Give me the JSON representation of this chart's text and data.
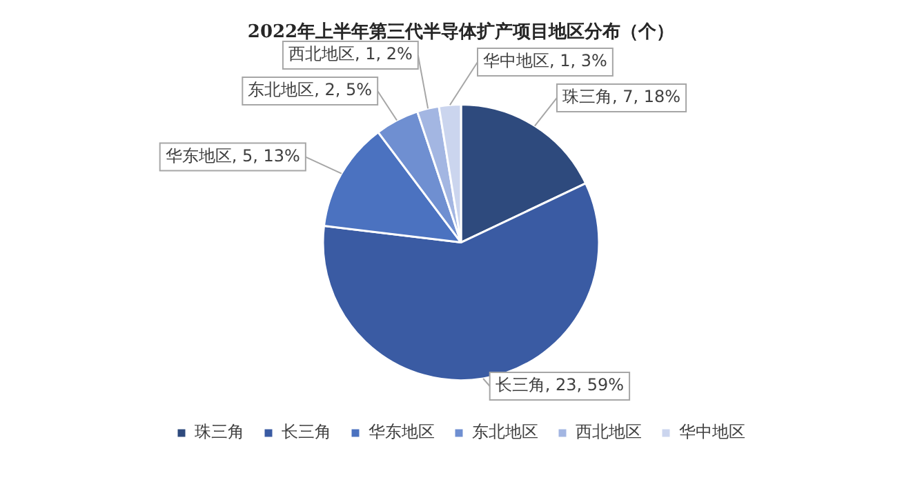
{
  "chart_data": {
    "type": "pie",
    "title": "2022年上半年第三代半导体扩产项目地区分布（个）",
    "categories": [
      "珠三角",
      "长三角",
      "华东地区",
      "东北地区",
      "西北地区",
      "华中地区"
    ],
    "values": [
      7,
      23,
      5,
      2,
      1,
      1
    ],
    "colors": [
      "#2e4a7d",
      "#3a5ba3",
      "#4b72c0",
      "#6f8fd1",
      "#a3b6e2",
      "#cbd5ee"
    ],
    "value_labels": [
      "珠三角, 7, 18%",
      "长三角, 23, 59%",
      "华东地区, 5, 13%",
      "东北地区, 2, 5%",
      "西北地区, 1, 2%",
      "华中地区, 1, 3%"
    ],
    "legend": "bottom"
  }
}
